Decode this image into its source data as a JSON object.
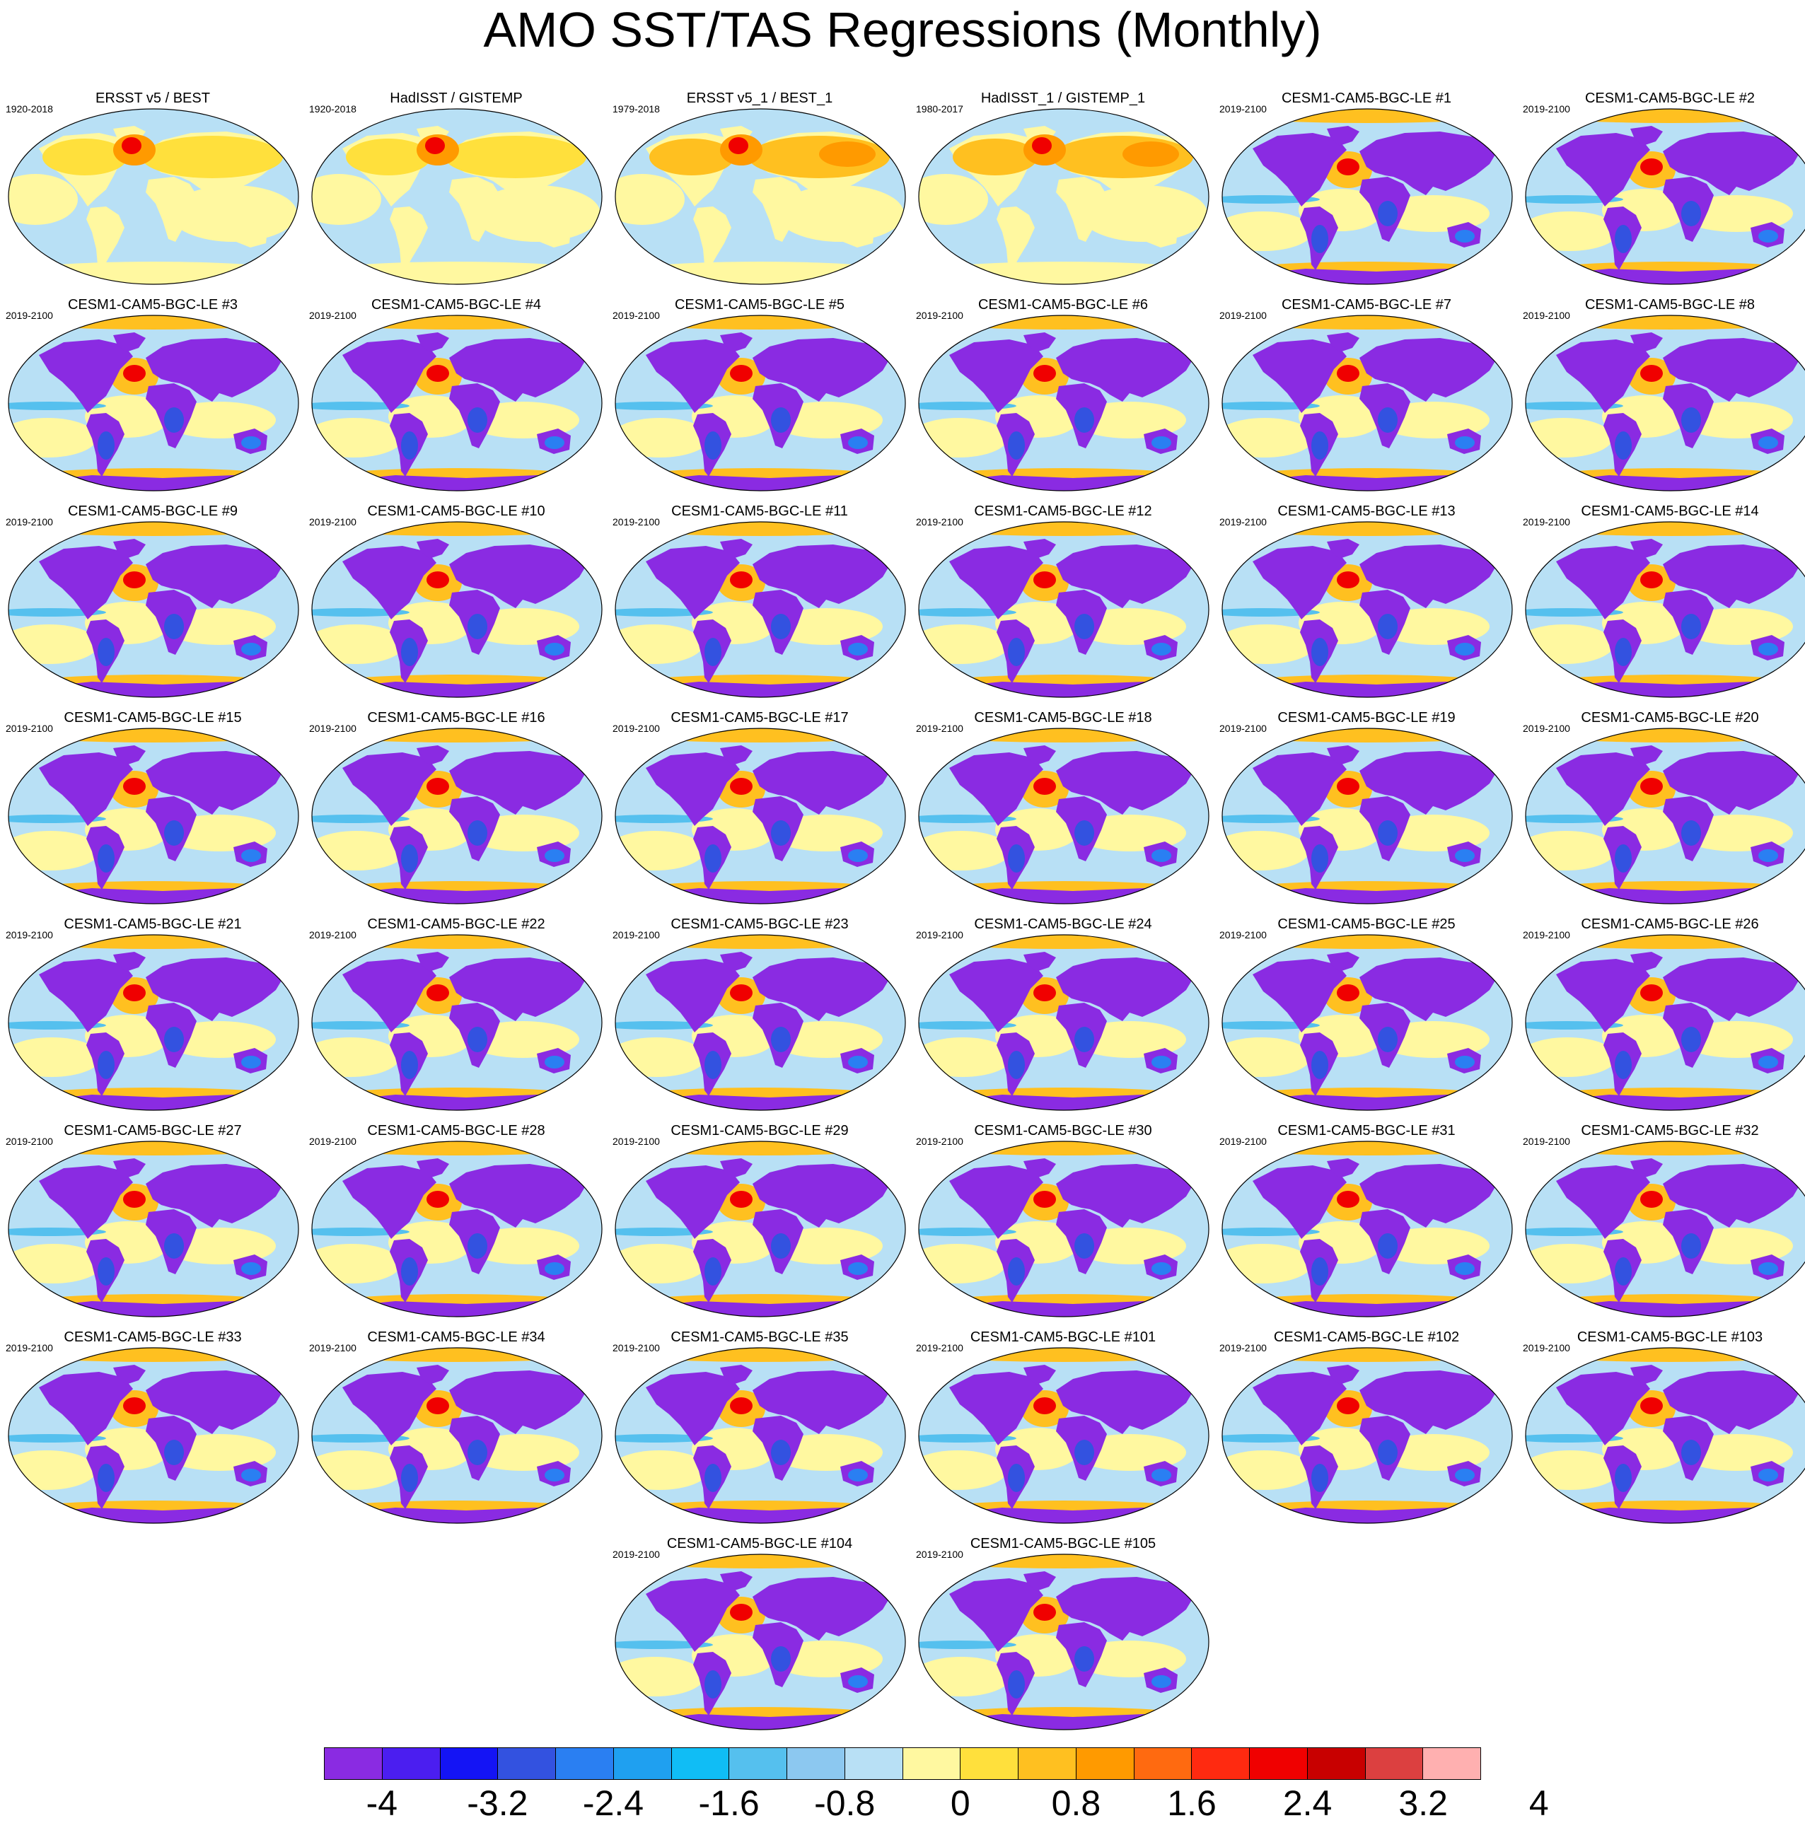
{
  "title": "AMO SST/TAS Regressions (Monthly)",
  "colorbar": {
    "colors": [
      "#8a2be2",
      "#4b1ef0",
      "#1414f5",
      "#3352e0",
      "#2a7ff2",
      "#1fa0f0",
      "#10bdf5",
      "#55c0ee",
      "#8cc8f0",
      "#b8e0f5",
      "#fff8a0",
      "#ffe03c",
      "#ffc020",
      "#ff9a00",
      "#ff6a10",
      "#ff2a10",
      "#f00000",
      "#c80000",
      "#dc4040",
      "#ffb0b0"
    ],
    "labels": [
      "-4",
      "-3.2",
      "-2.4",
      "-1.6",
      "-0.8",
      "0",
      "0.8",
      "1.6",
      "2.4",
      "3.2",
      "4"
    ]
  },
  "panels": [
    {
      "title": "ERSST v5 / BEST",
      "period": "1920-2018",
      "style": "obs"
    },
    {
      "title": "HadISST / GISTEMP",
      "period": "1920-2018",
      "style": "obs"
    },
    {
      "title": "ERSST v5_1 / BEST_1",
      "period": "1979-2018",
      "style": "obs2"
    },
    {
      "title": "HadISST_1 / GISTEMP_1",
      "period": "1980-2017",
      "style": "obs2"
    },
    {
      "title": "CESM1-CAM5-BGC-LE #1",
      "period": "2019-2100",
      "style": "model"
    },
    {
      "title": "CESM1-CAM5-BGC-LE #2",
      "period": "2019-2100",
      "style": "model"
    },
    {
      "title": "CESM1-CAM5-BGC-LE #3",
      "period": "2019-2100",
      "style": "model"
    },
    {
      "title": "CESM1-CAM5-BGC-LE #4",
      "period": "2019-2100",
      "style": "model"
    },
    {
      "title": "CESM1-CAM5-BGC-LE #5",
      "period": "2019-2100",
      "style": "model"
    },
    {
      "title": "CESM1-CAM5-BGC-LE #6",
      "period": "2019-2100",
      "style": "model"
    },
    {
      "title": "CESM1-CAM5-BGC-LE #7",
      "period": "2019-2100",
      "style": "model"
    },
    {
      "title": "CESM1-CAM5-BGC-LE #8",
      "period": "2019-2100",
      "style": "model"
    },
    {
      "title": "CESM1-CAM5-BGC-LE #9",
      "period": "2019-2100",
      "style": "model"
    },
    {
      "title": "CESM1-CAM5-BGC-LE #10",
      "period": "2019-2100",
      "style": "model"
    },
    {
      "title": "CESM1-CAM5-BGC-LE #11",
      "period": "2019-2100",
      "style": "model"
    },
    {
      "title": "CESM1-CAM5-BGC-LE #12",
      "period": "2019-2100",
      "style": "model"
    },
    {
      "title": "CESM1-CAM5-BGC-LE #13",
      "period": "2019-2100",
      "style": "model"
    },
    {
      "title": "CESM1-CAM5-BGC-LE #14",
      "period": "2019-2100",
      "style": "model"
    },
    {
      "title": "CESM1-CAM5-BGC-LE #15",
      "period": "2019-2100",
      "style": "model"
    },
    {
      "title": "CESM1-CAM5-BGC-LE #16",
      "period": "2019-2100",
      "style": "model"
    },
    {
      "title": "CESM1-CAM5-BGC-LE #17",
      "period": "2019-2100",
      "style": "model"
    },
    {
      "title": "CESM1-CAM5-BGC-LE #18",
      "period": "2019-2100",
      "style": "model"
    },
    {
      "title": "CESM1-CAM5-BGC-LE #19",
      "period": "2019-2100",
      "style": "model"
    },
    {
      "title": "CESM1-CAM5-BGC-LE #20",
      "period": "2019-2100",
      "style": "model"
    },
    {
      "title": "CESM1-CAM5-BGC-LE #21",
      "period": "2019-2100",
      "style": "model"
    },
    {
      "title": "CESM1-CAM5-BGC-LE #22",
      "period": "2019-2100",
      "style": "model"
    },
    {
      "title": "CESM1-CAM5-BGC-LE #23",
      "period": "2019-2100",
      "style": "model"
    },
    {
      "title": "CESM1-CAM5-BGC-LE #24",
      "period": "2019-2100",
      "style": "model"
    },
    {
      "title": "CESM1-CAM5-BGC-LE #25",
      "period": "2019-2100",
      "style": "model"
    },
    {
      "title": "CESM1-CAM5-BGC-LE #26",
      "period": "2019-2100",
      "style": "model"
    },
    {
      "title": "CESM1-CAM5-BGC-LE #27",
      "period": "2019-2100",
      "style": "model"
    },
    {
      "title": "CESM1-CAM5-BGC-LE #28",
      "period": "2019-2100",
      "style": "model"
    },
    {
      "title": "CESM1-CAM5-BGC-LE #29",
      "period": "2019-2100",
      "style": "model"
    },
    {
      "title": "CESM1-CAM5-BGC-LE #30",
      "period": "2019-2100",
      "style": "model"
    },
    {
      "title": "CESM1-CAM5-BGC-LE #31",
      "period": "2019-2100",
      "style": "model"
    },
    {
      "title": "CESM1-CAM5-BGC-LE #32",
      "period": "2019-2100",
      "style": "model"
    },
    {
      "title": "CESM1-CAM5-BGC-LE #33",
      "period": "2019-2100",
      "style": "model"
    },
    {
      "title": "CESM1-CAM5-BGC-LE #34",
      "period": "2019-2100",
      "style": "model"
    },
    {
      "title": "CESM1-CAM5-BGC-LE #35",
      "period": "2019-2100",
      "style": "model"
    },
    {
      "title": "CESM1-CAM5-BGC-LE #101",
      "period": "2019-2100",
      "style": "model"
    },
    {
      "title": "CESM1-CAM5-BGC-LE #102",
      "period": "2019-2100",
      "style": "model"
    },
    {
      "title": "CESM1-CAM5-BGC-LE #103",
      "period": "2019-2100",
      "style": "model"
    },
    {
      "title": "CESM1-CAM5-BGC-LE #104",
      "period": "2019-2100",
      "style": "model"
    },
    {
      "title": "CESM1-CAM5-BGC-LE #105",
      "period": "2019-2100",
      "style": "model"
    }
  ]
}
